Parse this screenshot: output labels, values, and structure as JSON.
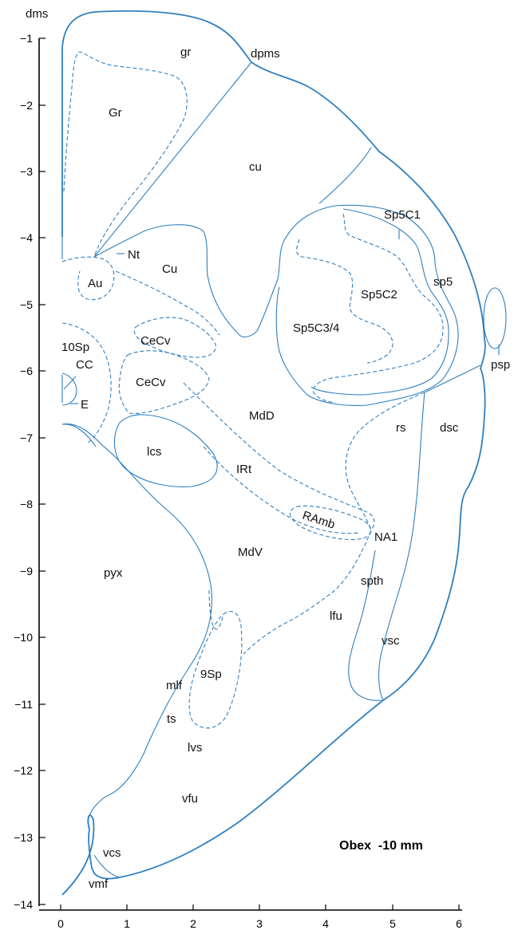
{
  "diagram": {
    "stage": "Obex  -10 mm",
    "y_axis": {
      "ticks": [
        "−1",
        "−2",
        "−3",
        "−4",
        "−5",
        "−6",
        "−7",
        "−8",
        "−9",
        "−10",
        "−11",
        "−12",
        "−13",
        "−14"
      ]
    },
    "x_axis": {
      "ticks": [
        "0",
        "1",
        "2",
        "3",
        "4",
        "5",
        "6"
      ]
    },
    "regions": {
      "dms": "dms",
      "gr": "gr",
      "dpms": "dpms",
      "Gr": "Gr",
      "cu": "cu",
      "Sp5C1": "Sp5C1",
      "Nt": "Nt",
      "Cu": "Cu",
      "sp5": "sp5",
      "Au": "Au",
      "Sp5C2": "Sp5C2",
      "Sp5C3_4": "Sp5C3/4",
      "10Sp": "10Sp",
      "CeCv_1": "CeCv",
      "CC": "CC",
      "psp": "psp",
      "CeCv_2": "CeCv",
      "E": "E",
      "MdD": "MdD",
      "rs": "rs",
      "dsc": "dsc",
      "lcs": "lcs",
      "IRt": "IRt",
      "RAmb": "RAmb",
      "NA1": "NA1",
      "MdV": "MdV",
      "pyx": "pyx",
      "spth": "spth",
      "lfu": "lfu",
      "vsc": "vsc",
      "9Sp": "9Sp",
      "mlf": "mlf",
      "ts": "ts",
      "lvs": "lvs",
      "vfu": "vfu",
      "vcs": "vcs",
      "vmf": "vmf"
    }
  }
}
